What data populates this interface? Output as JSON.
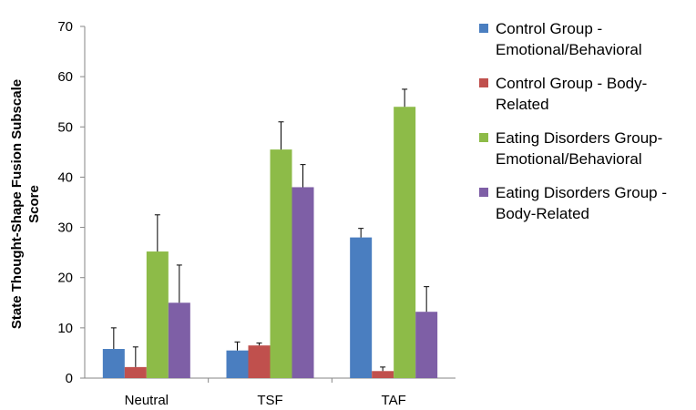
{
  "chart_data": {
    "type": "bar",
    "title": "",
    "xlabel": "",
    "ylabel_lines": [
      "State Thought-Shape Fusion Subscale",
      "Score"
    ],
    "categories": [
      "Neutral",
      "TSF",
      "TAF"
    ],
    "yticks": [
      0,
      10,
      20,
      30,
      40,
      50,
      60,
      70
    ],
    "ylim": [
      0,
      70
    ],
    "grid": false,
    "legend_position": "right",
    "series": [
      {
        "name": "Control Group - Emotional/Behavioral",
        "legend_lines": [
          "Control Group -",
          "Emotional/Behavioral"
        ],
        "color": "#4a7ec0",
        "values": [
          5.8,
          5.5,
          28.0
        ],
        "error_upper": [
          10.0,
          7.2,
          29.8
        ]
      },
      {
        "name": "Control Group - Body-Related",
        "legend_lines": [
          "Control Group - Body-",
          "Related"
        ],
        "color": "#c0504d",
        "values": [
          2.2,
          6.5,
          1.4
        ],
        "error_upper": [
          6.2,
          7.0,
          2.2
        ]
      },
      {
        "name": "Eating Disorders Group- Emotional/Behavioral",
        "legend_lines": [
          "Eating Disorders Group-",
          "Emotional/Behavioral"
        ],
        "color": "#8dbb48",
        "values": [
          25.2,
          45.5,
          54.0
        ],
        "error_upper": [
          32.5,
          51.0,
          57.5
        ]
      },
      {
        "name": "Eating Disorders Group - Body-Related",
        "legend_lines": [
          "Eating Disorders Group -",
          "Body-Related"
        ],
        "color": "#7e5fa6",
        "values": [
          15.0,
          38.0,
          13.2
        ],
        "error_upper": [
          22.5,
          42.5,
          18.2
        ]
      }
    ]
  }
}
